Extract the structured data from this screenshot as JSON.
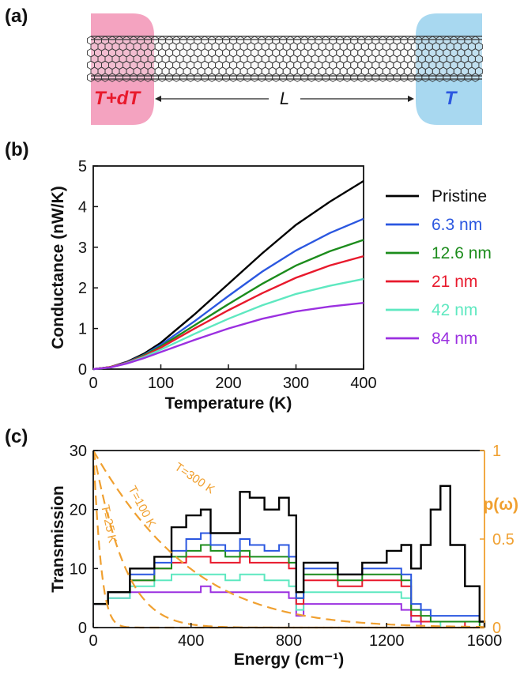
{
  "panel_a": {
    "label": "(a)",
    "left_contact_text": "T+dT",
    "right_contact_text": "T",
    "length_label": "L",
    "colors": {
      "left_contact": "#f4a3c0",
      "right_contact": "#a8d8f0",
      "left_text": "#e8192c",
      "right_text": "#2b57e0"
    }
  },
  "panel_b": {
    "label": "(b)"
  },
  "panel_c": {
    "label": "(c)"
  },
  "chart_data": [
    {
      "type": "line",
      "xlabel": "Temperature (K)",
      "ylabel": "Conductance (nW/K)",
      "xlim": [
        0,
        400
      ],
      "ylim": [
        0,
        5
      ],
      "xticks": [
        0,
        100,
        200,
        300,
        400
      ],
      "yticks": [
        0,
        1,
        2,
        3,
        4,
        5
      ],
      "grid": false,
      "legend_position": "right",
      "x": [
        0,
        25,
        50,
        75,
        100,
        150,
        200,
        250,
        300,
        350,
        400
      ],
      "series": [
        {
          "name": "Pristine",
          "color": "#000000",
          "values": [
            0,
            0.05,
            0.18,
            0.38,
            0.65,
            1.35,
            2.1,
            2.85,
            3.55,
            4.12,
            4.63
          ]
        },
        {
          "name": "6.3 nm",
          "color": "#2b57e0",
          "values": [
            0,
            0.05,
            0.17,
            0.35,
            0.6,
            1.18,
            1.8,
            2.4,
            2.92,
            3.35,
            3.7
          ]
        },
        {
          "name": "12.6 nm",
          "color": "#1c8c1c",
          "values": [
            0,
            0.05,
            0.16,
            0.34,
            0.56,
            1.08,
            1.6,
            2.1,
            2.55,
            2.9,
            3.18
          ]
        },
        {
          "name": "21 nm",
          "color": "#e8192c",
          "values": [
            0,
            0.05,
            0.16,
            0.32,
            0.53,
            1.0,
            1.45,
            1.87,
            2.25,
            2.55,
            2.78
          ]
        },
        {
          "name": "42 nm",
          "color": "#5ee8c0",
          "values": [
            0,
            0.04,
            0.15,
            0.3,
            0.48,
            0.87,
            1.24,
            1.57,
            1.85,
            2.05,
            2.22
          ]
        },
        {
          "name": "84 nm",
          "color": "#9b30e0",
          "values": [
            0,
            0.04,
            0.14,
            0.27,
            0.42,
            0.72,
            1.0,
            1.24,
            1.42,
            1.54,
            1.63
          ]
        }
      ]
    },
    {
      "type": "line",
      "xlabel": "Energy (cm⁻¹)",
      "ylabel": "Transmission",
      "y2label": "p(ω)",
      "xlim": [
        0,
        1600
      ],
      "ylim": [
        0,
        30
      ],
      "y2lim": [
        0,
        1
      ],
      "xticks": [
        0,
        400,
        800,
        1200,
        1600
      ],
      "yticks": [
        0,
        10,
        20,
        30
      ],
      "y2ticks": [
        "0",
        "0.5",
        "1"
      ],
      "grid": false,
      "colors": {
        "secondary_axis": "#f0a030"
      },
      "transmission": {
        "x": [
          0,
          60,
          150,
          250,
          320,
          380,
          440,
          480,
          540,
          600,
          640,
          700,
          760,
          800,
          830,
          860,
          920,
          1000,
          1100,
          1200,
          1260,
          1300,
          1340,
          1380,
          1420,
          1460,
          1520,
          1580,
          1600
        ],
        "series": [
          {
            "name": "Pristine",
            "color": "#000000",
            "values": [
              4,
              6,
              10,
              12,
              17,
              19,
              20,
              16,
              16,
              23,
              22,
              20,
              22,
              19,
              6,
              11,
              11,
              9,
              11,
              13,
              14,
              10,
              14,
              20,
              24,
              14,
              7,
              1,
              0
            ]
          },
          {
            "name": "6.3 nm",
            "color": "#2b57e0",
            "values": [
              4,
              6,
              9,
              11,
              13,
              15,
              16,
              14,
              13,
              15,
              14,
              13,
              14,
              12,
              5,
              10,
              10,
              9,
              10,
              10,
              9,
              4,
              3,
              2,
              2,
              2,
              2,
              1,
              0
            ]
          },
          {
            "name": "12.6 nm",
            "color": "#1c8c1c",
            "values": [
              4,
              6,
              8,
              10,
              12,
              13,
              14,
              13,
              12,
              13,
              12,
              12,
              12,
              11,
              5,
              9,
              9,
              8,
              9,
              9,
              8,
              3,
              2,
              1,
              1,
              1,
              1,
              0,
              0
            ]
          },
          {
            "name": "21 nm",
            "color": "#e8192c",
            "values": [
              4,
              6,
              8,
              10,
              11,
              12,
              12,
              11,
              11,
              12,
              11,
              11,
              11,
              10,
              4,
              8,
              8,
              7,
              8,
              8,
              7,
              2,
              1,
              1,
              1,
              1,
              0,
              0,
              0
            ]
          },
          {
            "name": "42 nm",
            "color": "#5ee8c0",
            "values": [
              4,
              5,
              7,
              8,
              9,
              9,
              9,
              9,
              8,
              9,
              9,
              8,
              8,
              7,
              3,
              6,
              6,
              6,
              6,
              6,
              5,
              2,
              1,
              1,
              0,
              0,
              0,
              0,
              0
            ]
          },
          {
            "name": "84 nm",
            "color": "#9b30e0",
            "values": [
              4,
              5,
              6,
              6,
              6,
              6,
              7,
              6,
              6,
              6,
              6,
              6,
              6,
              5,
              2,
              4,
              4,
              4,
              4,
              4,
              3,
              1,
              0,
              0,
              0,
              0,
              0,
              0,
              0
            ]
          }
        ]
      },
      "occupation_curves": [
        {
          "label": "T=300 K",
          "T": 300
        },
        {
          "label": "T=100 K",
          "T": 100
        },
        {
          "label": "T=25 K",
          "T": 25
        }
      ]
    }
  ]
}
